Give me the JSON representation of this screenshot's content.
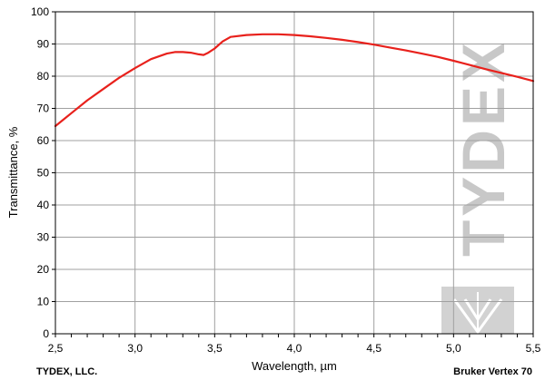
{
  "chart_data": {
    "type": "line",
    "xlabel": "Wavelength, µm",
    "ylabel": "Transmittance, %",
    "xlim": [
      2.5,
      5.5
    ],
    "ylim": [
      0,
      100
    ],
    "x_ticks": [
      2.5,
      3.0,
      3.5,
      4.0,
      4.5,
      5.0,
      5.5
    ],
    "x_tick_labels": [
      "2,5",
      "3,0",
      "3,5",
      "4,0",
      "4,5",
      "5,0",
      "5,5"
    ],
    "x_minor_step": 0.1,
    "y_ticks": [
      0,
      10,
      20,
      30,
      40,
      50,
      60,
      70,
      80,
      90,
      100
    ],
    "y_tick_labels": [
      "0",
      "10",
      "20",
      "30",
      "40",
      "50",
      "60",
      "70",
      "80",
      "90",
      "100"
    ],
    "grid": true,
    "series": [
      {
        "color": "#e8211c",
        "x": [
          2.5,
          2.6,
          2.7,
          2.8,
          2.9,
          3.0,
          3.1,
          3.2,
          3.25,
          3.3,
          3.35,
          3.4,
          3.43,
          3.46,
          3.5,
          3.55,
          3.6,
          3.7,
          3.8,
          3.9,
          4.0,
          4.1,
          4.2,
          4.3,
          4.4,
          4.5,
          4.6,
          4.7,
          4.8,
          4.9,
          5.0,
          5.1,
          5.2,
          5.3,
          5.4,
          5.5
        ],
        "y": [
          64.5,
          68.5,
          72.5,
          76.0,
          79.5,
          82.5,
          85.3,
          87.0,
          87.5,
          87.5,
          87.3,
          86.8,
          86.6,
          87.3,
          88.6,
          90.8,
          92.2,
          92.8,
          93.0,
          93.0,
          92.8,
          92.4,
          91.9,
          91.3,
          90.6,
          89.8,
          88.9,
          88.0,
          87.0,
          86.0,
          84.8,
          83.5,
          82.2,
          81.0,
          79.8,
          78.5
        ]
      }
    ]
  },
  "watermark": {
    "text": "TYDEX",
    "color": "#c8c8c8"
  },
  "footer": {
    "left": "TYDEX, LLC.",
    "right": "Bruker Vertex 70"
  }
}
